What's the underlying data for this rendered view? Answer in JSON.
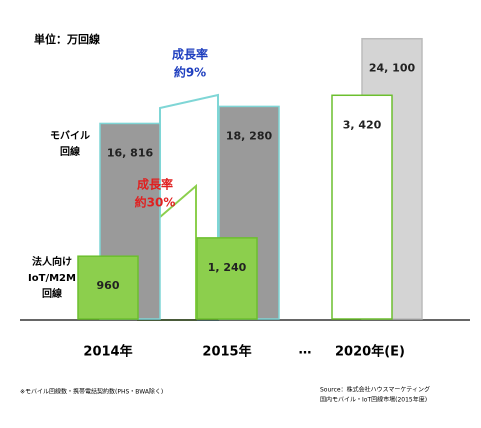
{
  "chart_data": {
    "type": "bar",
    "unit_label": "単位：万回線",
    "categories": [
      "2014年",
      "2015年",
      "2020年(E)"
    ],
    "separator": "…",
    "series": [
      {
        "name": "モバイル回線",
        "colors": [
          "#9a9a9a",
          "#9a9a9a",
          "#d4d4d4"
        ],
        "values": [
          16816,
          18280,
          24100
        ],
        "value_labels": [
          "16, 816",
          "18, 280",
          "24, 100"
        ]
      },
      {
        "name": "法人向けIoT/M2M回線",
        "colors": [
          "#8ccf4d",
          "#8ccf4d",
          "#ffffff"
        ],
        "values": [
          960,
          1240,
          3420
        ],
        "value_labels": [
          "960",
          "1, 240",
          "3, 420"
        ],
        "axis": "y2"
      }
    ],
    "ylim": [
      0,
      27000
    ],
    "y2lim": [
      0,
      4800
    ],
    "annotations": [
      {
        "text": "成長率",
        "text2": "約9%",
        "color": "#1f3fbf"
      },
      {
        "text": "成長率",
        "text2": "約30%",
        "color": "#e02020"
      }
    ],
    "footnote": "※モバイル回線数・携帯電話契約数(PHS・BWA除く)",
    "source": [
      "Source：株式会社ハウスマーケティング",
      "国内モバイル・IoT回線市場(2015年度)"
    ]
  }
}
